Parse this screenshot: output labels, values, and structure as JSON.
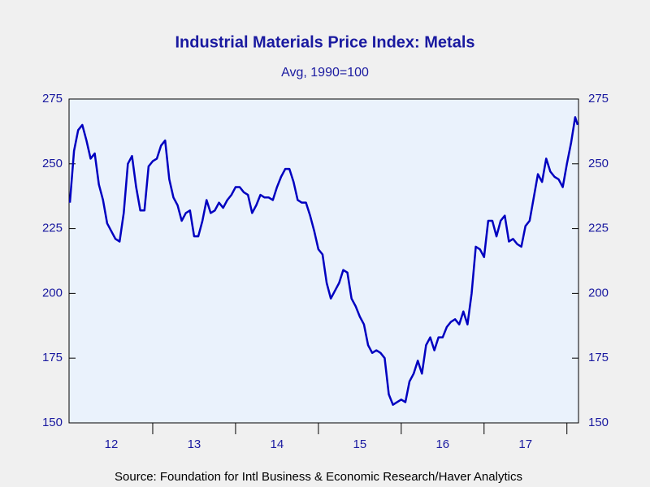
{
  "chart_data": {
    "type": "line",
    "title": "Industrial Materials Price Index: Metals",
    "subtitle": "Avg, 1990=100",
    "source": "Source:  Foundation for Intl Business & Economic Research/Haver Analytics",
    "x": [
      2012,
      2012.05,
      2012.1,
      2012.15,
      2012.2,
      2012.25,
      2012.3,
      2012.35,
      2012.4,
      2012.45,
      2012.5,
      2012.55,
      2012.6,
      2012.65,
      2012.7,
      2012.75,
      2012.8,
      2012.85,
      2012.9,
      2012.95,
      2013,
      2013.05,
      2013.1,
      2013.15,
      2013.2,
      2013.25,
      2013.3,
      2013.35,
      2013.4,
      2013.45,
      2013.5,
      2013.55,
      2013.6,
      2013.65,
      2013.7,
      2013.75,
      2013.8,
      2013.85,
      2013.9,
      2013.95,
      2014,
      2014.05,
      2014.1,
      2014.15,
      2014.2,
      2014.25,
      2014.3,
      2014.35,
      2014.4,
      2014.45,
      2014.5,
      2014.55,
      2014.6,
      2014.65,
      2014.7,
      2014.75,
      2014.8,
      2014.85,
      2014.9,
      2014.95,
      2015,
      2015.05,
      2015.1,
      2015.15,
      2015.2,
      2015.25,
      2015.3,
      2015.35,
      2015.4,
      2015.45,
      2015.5,
      2015.55,
      2015.6,
      2015.65,
      2015.7,
      2015.75,
      2015.8,
      2015.85,
      2015.9,
      2015.95,
      2016,
      2016.05,
      2016.1,
      2016.15,
      2016.2,
      2016.25,
      2016.3,
      2016.35,
      2016.4,
      2016.45,
      2016.5,
      2016.55,
      2016.6,
      2016.65,
      2016.7,
      2016.75,
      2016.8,
      2016.85,
      2016.9,
      2016.95,
      2017,
      2017.05,
      2017.1,
      2017.15,
      2017.2,
      2017.25,
      2017.3,
      2017.35,
      2017.4,
      2017.45,
      2017.5,
      2017.55,
      2017.6,
      2017.65,
      2017.7,
      2017.75,
      2017.8,
      2017.85,
      2017.9,
      2017.95,
      2018,
      2018.05,
      2018.1,
      2018.13
    ],
    "series": [
      {
        "name": "Metals",
        "color": "#0000c0",
        "values": [
          235,
          255,
          263,
          265,
          259,
          252,
          254,
          242,
          236,
          227,
          224,
          221,
          220,
          231,
          250,
          253,
          241,
          232,
          232,
          249,
          251,
          252,
          257,
          259,
          244,
          237,
          234,
          228,
          231,
          232,
          222,
          222,
          228,
          236,
          231,
          232,
          235,
          233,
          236,
          238,
          241,
          241,
          239,
          238,
          231,
          234,
          238,
          237,
          237,
          236,
          241,
          245,
          248,
          248,
          243,
          236,
          235,
          235,
          230,
          224,
          217,
          215,
          204,
          198,
          201,
          204,
          209,
          208,
          198,
          195,
          191,
          188,
          180,
          177,
          178,
          177,
          175,
          161,
          157,
          158,
          159,
          158,
          166,
          169,
          174,
          169,
          180,
          183,
          178,
          183,
          183,
          187,
          189,
          190,
          188,
          193,
          188,
          200,
          218,
          217,
          214,
          228,
          228,
          222,
          228,
          230,
          220,
          221,
          219,
          218,
          226,
          228,
          237,
          246,
          243,
          252,
          247,
          245,
          244,
          241,
          250,
          258,
          268,
          265
        ]
      }
    ],
    "xlim": [
      2011.99,
      2018.14
    ],
    "xticks": [
      2013,
      2014,
      2015,
      2016,
      2017,
      2018
    ],
    "x_labels": [
      {
        "value": 2012.5,
        "label": "12"
      },
      {
        "value": 2013.5,
        "label": "13"
      },
      {
        "value": 2014.5,
        "label": "14"
      },
      {
        "value": 2015.5,
        "label": "15"
      },
      {
        "value": 2016.5,
        "label": "16"
      },
      {
        "value": 2017.5,
        "label": "17"
      }
    ],
    "ylim": [
      150,
      275
    ],
    "yticks": [
      150,
      175,
      200,
      225,
      250,
      275
    ]
  }
}
